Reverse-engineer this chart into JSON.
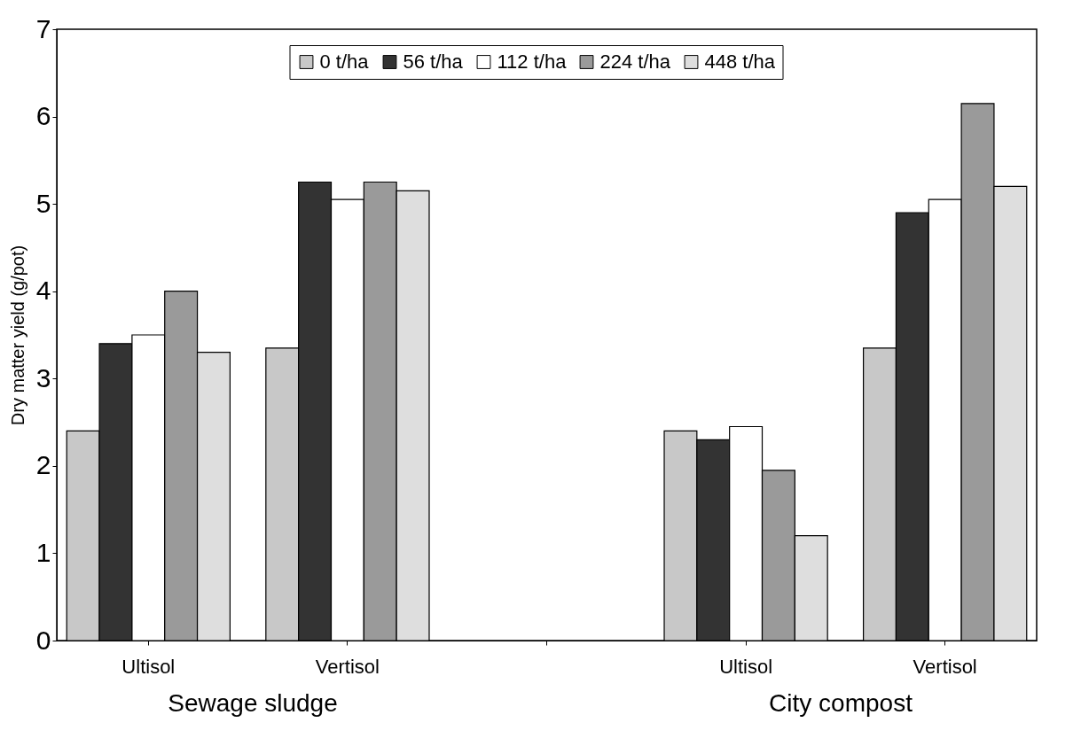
{
  "chart_data": {
    "type": "bar",
    "ylabel": "Dry matter yield (g/pot)",
    "categories": [
      "Ultisol",
      "Vertisol",
      null,
      "Ultisol",
      "Vertisol"
    ],
    "series": [
      {
        "name": "0 t/ha",
        "color": "#c8c8c8",
        "values": [
          2.4,
          3.35,
          null,
          2.4,
          3.35
        ]
      },
      {
        "name": "56 t/ha",
        "color": "#333333",
        "values": [
          3.4,
          5.25,
          null,
          2.3,
          4.9
        ]
      },
      {
        "name": "112 t/ha",
        "color": "#ffffff",
        "values": [
          3.5,
          5.05,
          null,
          2.45,
          5.05
        ]
      },
      {
        "name": "224 t/ha",
        "color": "#9a9a9a",
        "values": [
          4.0,
          5.25,
          null,
          1.95,
          6.15
        ]
      },
      {
        "name": "448 t/ha",
        "color": "#dedede",
        "values": [
          3.3,
          5.15,
          null,
          1.2,
          5.2
        ]
      }
    ],
    "ylim": [
      0,
      7
    ],
    "yticks": [
      0,
      1,
      2,
      3,
      4,
      5,
      6,
      7
    ],
    "grid": false,
    "legend": "top",
    "annotations": [
      "Sewage sludge",
      "City compost"
    ]
  }
}
